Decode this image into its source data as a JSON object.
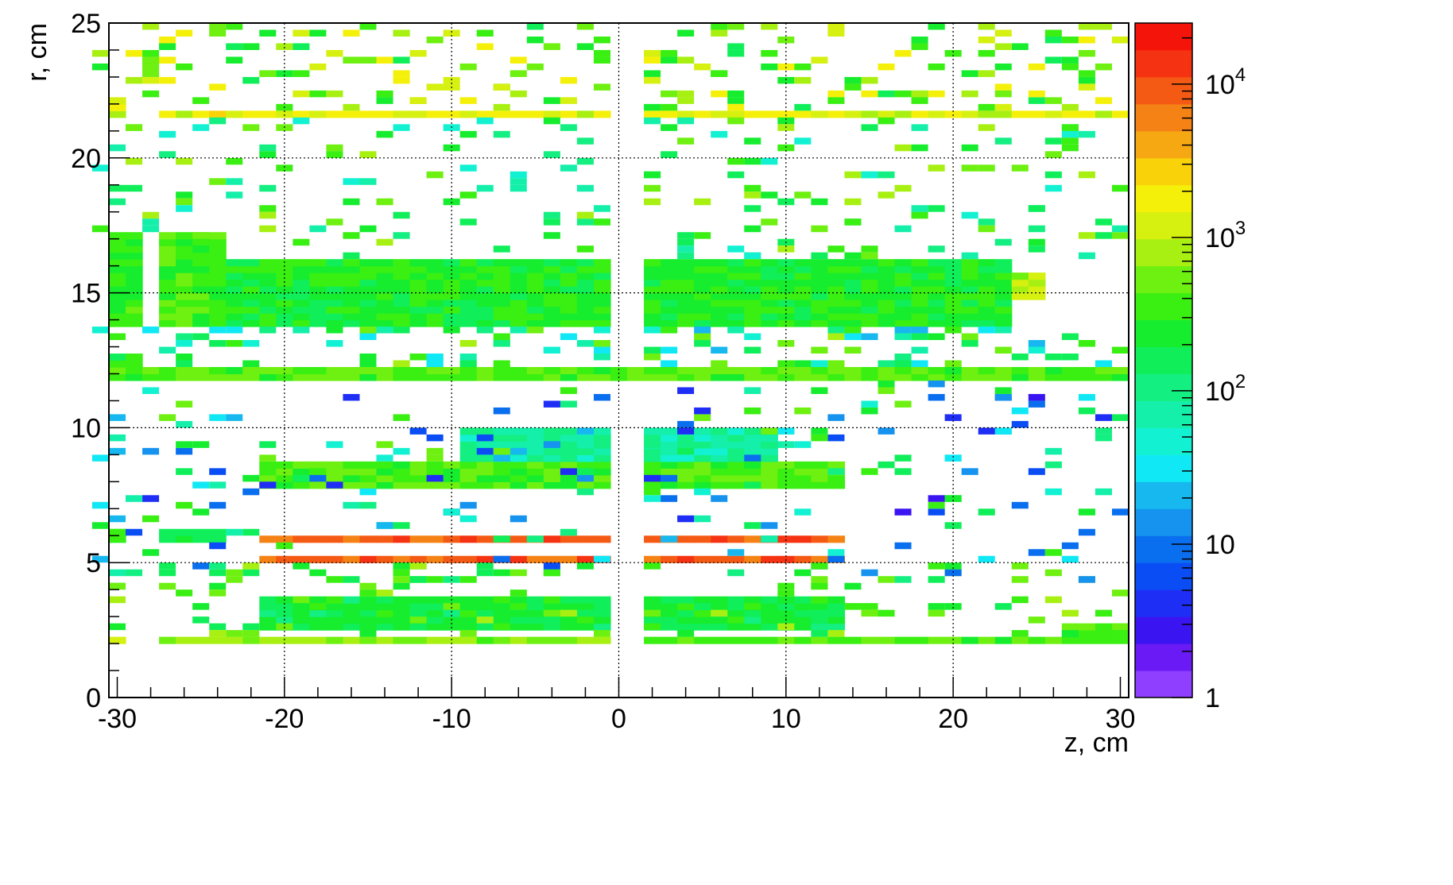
{
  "chart_data": {
    "type": "heatmap",
    "title": "",
    "xlabel": "z, cm",
    "ylabel": "r, cm",
    "xlim": [
      -30.5,
      30.5
    ],
    "ylim": [
      0,
      25
    ],
    "x_ticks": [
      -30,
      -20,
      -10,
      0,
      10,
      20,
      30
    ],
    "x_tick_labels": [
      "-30",
      "-20",
      "-10",
      "0",
      "10",
      "20",
      "30"
    ],
    "y_ticks": [
      0,
      5,
      10,
      15,
      20,
      25
    ],
    "y_tick_labels": [
      "0",
      "5",
      "10",
      "15",
      "20",
      "25"
    ],
    "grid": true,
    "bin_width_z": 1.0,
    "bin_height_r": 0.25,
    "colorbar": {
      "scale": "log",
      "range": [
        1,
        25000
      ],
      "tick_values": [
        1,
        10,
        100,
        1000,
        10000
      ],
      "tick_labels": [
        {
          "base": "1",
          "exp": ""
        },
        {
          "base": "10",
          "exp": ""
        },
        {
          "base": "10",
          "exp": "2"
        },
        {
          "base": "10",
          "exp": "3"
        },
        {
          "base": "10",
          "exp": "4"
        }
      ],
      "palette": [
        "#8f3fff",
        "#6a1bf5",
        "#3b14f2",
        "#1f2ef5",
        "#0a4df5",
        "#0a6fef",
        "#1593ef",
        "#16b8ef",
        "#10e9f5",
        "#12f2d2",
        "#14efaa",
        "#14ef82",
        "#10ef5a",
        "#16ed2e",
        "#3aef12",
        "#6ef010",
        "#a8f012",
        "#d6f010",
        "#f5f00a",
        "#f9d20a",
        "#f5a812",
        "#f58214",
        "#f55a14",
        "#f53312",
        "#f5140a"
      ]
    },
    "regions": [
      {
        "z": [
          -30.5,
          -29.5
        ],
        "r": [
          2.0,
          2.25
        ],
        "value": 900
      },
      {
        "z": [
          -27.5,
          -0.5
        ],
        "r": [
          2.0,
          2.25
        ],
        "value": 600
      },
      {
        "z": [
          1.5,
          30.5
        ],
        "r": [
          2.0,
          2.25
        ],
        "value": 400
      },
      {
        "z": [
          -21.5,
          -0.5
        ],
        "r": [
          2.5,
          3.75
        ],
        "value": 200
      },
      {
        "z": [
          1.5,
          13.5
        ],
        "r": [
          2.5,
          3.75
        ],
        "value": 200
      },
      {
        "z": [
          26.5,
          30.5
        ],
        "r": [
          2.25,
          2.75
        ],
        "value": 300
      },
      {
        "z": [
          -21.5,
          -8.5
        ],
        "r": [
          5.0,
          5.25
        ],
        "value": 8000
      },
      {
        "z": [
          -8.5,
          -0.5
        ],
        "r": [
          5.0,
          5.25
        ],
        "value": 9000
      },
      {
        "z": [
          1.5,
          13.5
        ],
        "r": [
          5.0,
          5.25
        ],
        "value": 8500
      },
      {
        "z": [
          -21.5,
          -0.5
        ],
        "r": [
          5.75,
          6.0
        ],
        "value": 9000
      },
      {
        "z": [
          1.5,
          13.5
        ],
        "r": [
          5.75,
          6.0
        ],
        "value": 9500
      },
      {
        "z": [
          -30.5,
          -29.5
        ],
        "r": [
          5.75,
          6.25
        ],
        "value": 200
      },
      {
        "z": [
          -27.5,
          -23.5
        ],
        "r": [
          5.75,
          6.25
        ],
        "value": 150
      },
      {
        "z": [
          -21.5,
          -0.5
        ],
        "r": [
          7.75,
          8.75
        ],
        "value": 400
      },
      {
        "z": [
          1.5,
          13.5
        ],
        "r": [
          7.75,
          8.75
        ],
        "value": 400
      },
      {
        "z": [
          -9.5,
          -0.5
        ],
        "r": [
          8.75,
          10.0
        ],
        "value": 80
      },
      {
        "z": [
          1.5,
          9.5
        ],
        "r": [
          8.75,
          10.0
        ],
        "value": 80
      },
      {
        "z": [
          -30.5,
          30.5
        ],
        "r": [
          11.75,
          12.25
        ],
        "value": 400
      },
      {
        "z": [
          -30.5,
          -28.5
        ],
        "r": [
          12.25,
          12.75
        ],
        "value": 250
      },
      {
        "z": [
          -30.5,
          -28.5
        ],
        "r": [
          13.75,
          17.25
        ],
        "value": 300
      },
      {
        "z": [
          -27.5,
          -23.5
        ],
        "r": [
          13.75,
          17.25
        ],
        "value": 350
      },
      {
        "z": [
          -23.5,
          -0.5
        ],
        "r": [
          13.75,
          16.25
        ],
        "value": 250
      },
      {
        "z": [
          1.5,
          23.5
        ],
        "r": [
          13.75,
          16.25
        ],
        "value": 250
      },
      {
        "z": [
          23.5,
          25.5
        ],
        "r": [
          14.75,
          15.75
        ],
        "value": 900
      },
      {
        "z": [
          -30.5,
          -29.5
        ],
        "r": [
          21.5,
          22.25
        ],
        "value": 1500
      },
      {
        "z": [
          -27.5,
          -0.5
        ],
        "r": [
          21.5,
          21.75
        ],
        "value": 1500
      },
      {
        "z": [
          1.5,
          30.5
        ],
        "r": [
          21.5,
          21.75
        ],
        "value": 1500
      }
    ]
  }
}
